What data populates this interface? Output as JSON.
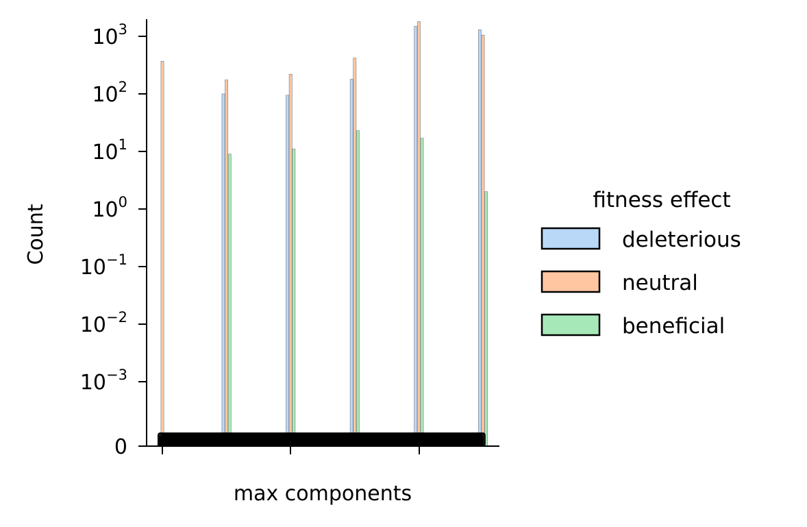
{
  "chart_data": {
    "type": "bar",
    "title": "",
    "xlabel": "max components",
    "ylabel": "Count",
    "y_scale": "symlog",
    "y_ticks": [
      {
        "value": 0,
        "label": "0"
      },
      {
        "value": 0.001,
        "base": "10",
        "exp": "−3"
      },
      {
        "value": 0.01,
        "base": "10",
        "exp": "−2"
      },
      {
        "value": 0.1,
        "base": "10",
        "exp": "−1"
      },
      {
        "value": 1,
        "base": "10",
        "exp": "0"
      },
      {
        "value": 10,
        "base": "10",
        "exp": "1"
      },
      {
        "value": 100,
        "base": "10",
        "exp": "2"
      },
      {
        "value": 1000,
        "base": "10",
        "exp": "3"
      }
    ],
    "x_ticks": 3,
    "groups": 6,
    "legend": {
      "title": "fitness effect",
      "position": "right",
      "entries": [
        "deleterious",
        "neutral",
        "beneficial"
      ]
    },
    "series": [
      {
        "name": "deleterious",
        "color": "#b9d7f7",
        "values": [
          0,
          100,
          95,
          180,
          1500,
          1300
        ]
      },
      {
        "name": "neutral",
        "color": "#ffc6a1",
        "values": [
          370,
          175,
          220,
          420,
          1800,
          1050
        ]
      },
      {
        "name": "beneficial",
        "color": "#a7e8b8",
        "values": [
          0,
          9,
          11,
          23,
          17,
          2
        ]
      }
    ],
    "grid": false
  }
}
